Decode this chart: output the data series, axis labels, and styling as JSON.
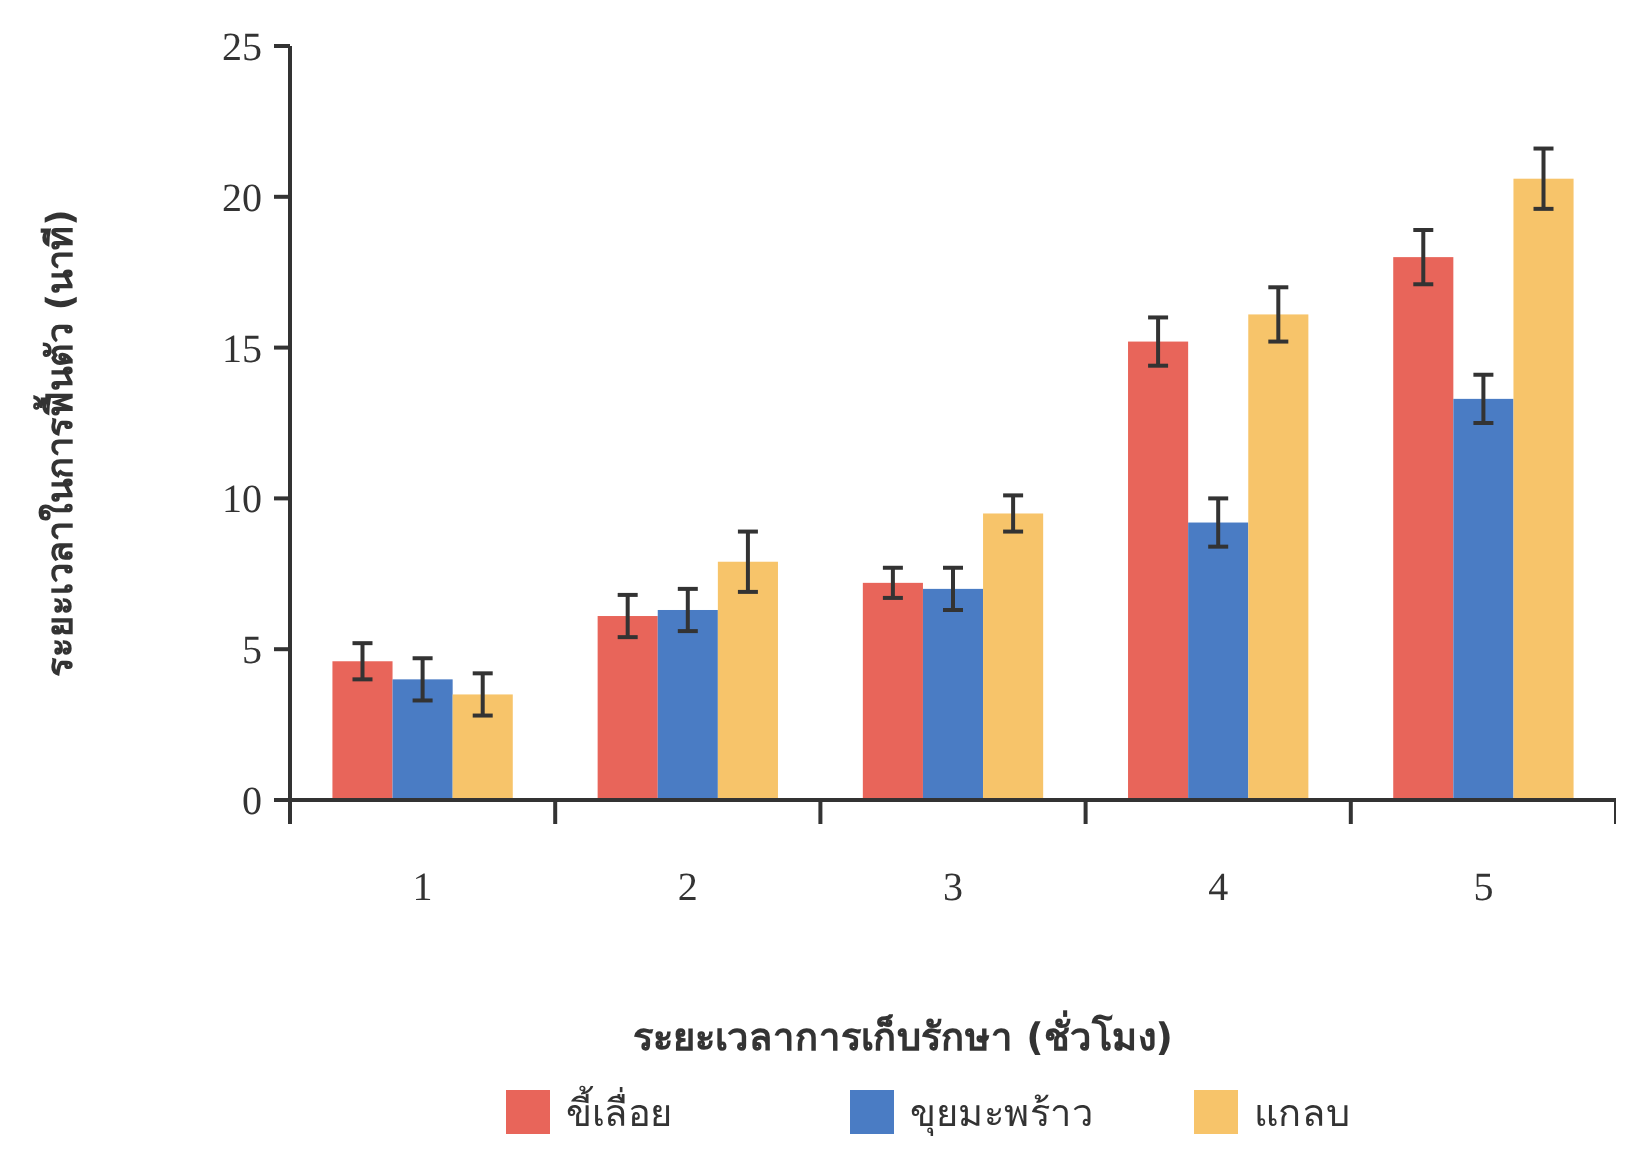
{
  "chart_data": {
    "type": "bar",
    "xlabel": "ระยะเวลาการเก็บรักษา (ชั่วโมง)",
    "ylabel": "ระยะเวลาในการฟื้นตัว (นาที)",
    "categories": [
      "1",
      "2",
      "3",
      "4",
      "5"
    ],
    "ylim": [
      0,
      25
    ],
    "yticks": [
      0,
      5,
      10,
      15,
      20,
      25
    ],
    "legend": "bottom",
    "grid": false,
    "series": [
      {
        "name": "ขี้เลื่อย",
        "color": "#e8655a",
        "values": [
          4.6,
          6.1,
          7.2,
          15.2,
          18.0
        ],
        "errors": [
          0.6,
          0.7,
          0.5,
          0.8,
          0.9
        ]
      },
      {
        "name": "ขุยมะพร้าว",
        "color": "#4a7cc4",
        "values": [
          4.0,
          6.3,
          7.0,
          9.2,
          13.3
        ],
        "errors": [
          0.7,
          0.7,
          0.7,
          0.8,
          0.8
        ]
      },
      {
        "name": "แกลบ",
        "color": "#f7c46a",
        "values": [
          3.5,
          7.9,
          9.5,
          16.1,
          20.6
        ],
        "errors": [
          0.7,
          1.0,
          0.6,
          0.9,
          1.0
        ]
      }
    ]
  }
}
